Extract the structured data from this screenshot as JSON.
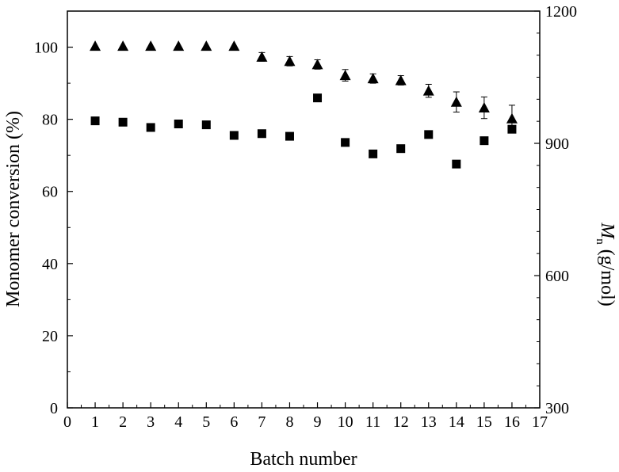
{
  "chart_data": {
    "type": "scatter",
    "title": "",
    "xlabel": "Batch number",
    "ylabel_left": "Monomer conversion (%)",
    "ylabel_right_main": "M",
    "ylabel_right_sub": "n",
    "ylabel_right_unit": " (g/mol)",
    "xlim": [
      0,
      17
    ],
    "ylim_left": [
      0,
      110
    ],
    "ylim_right": [
      300,
      1200
    ],
    "x_ticks": [
      0,
      1,
      2,
      3,
      4,
      5,
      6,
      7,
      8,
      9,
      10,
      11,
      12,
      13,
      14,
      15,
      16,
      17
    ],
    "y_left_ticks": [
      0,
      20,
      40,
      60,
      80,
      100
    ],
    "y_right_ticks": [
      300,
      600,
      900,
      1200
    ],
    "grid": false,
    "legend": "none",
    "series": [
      {
        "axis": "left",
        "marker": "triangle",
        "x": [
          1,
          2,
          3,
          4,
          5,
          6,
          7,
          8,
          9,
          10,
          11,
          12,
          13,
          14,
          15,
          16
        ],
        "values": [
          100.3,
          100.3,
          100.3,
          100.3,
          100.3,
          100.3,
          97.3,
          96.1,
          95.2,
          92.2,
          91.3,
          90.8,
          87.9,
          84.8,
          83.2,
          80.2
        ],
        "error": [
          0,
          0,
          0,
          0,
          0,
          0,
          1.2,
          1.3,
          1.3,
          1.6,
          1.3,
          1.3,
          1.8,
          2.8,
          3.0,
          3.7
        ]
      },
      {
        "axis": "right",
        "marker": "square",
        "x": [
          1,
          2,
          3,
          4,
          5,
          6,
          7,
          8,
          9,
          10,
          11,
          12,
          13,
          14,
          15,
          16
        ],
        "values": [
          951,
          948,
          936,
          944,
          942,
          918,
          922,
          916,
          1003,
          902,
          876,
          888,
          920,
          853,
          906,
          932
        ]
      }
    ]
  }
}
